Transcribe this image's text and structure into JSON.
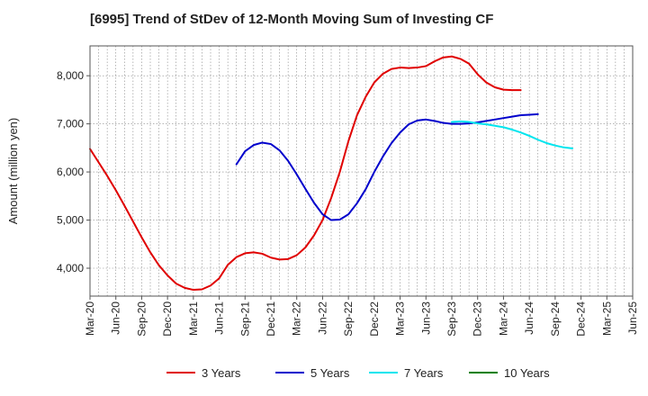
{
  "chart_data": {
    "type": "line",
    "title": "[6995]  Trend of StDev of 12-Month Moving Sum of Investing CF",
    "xlabel": "",
    "ylabel": "Amount (million yen)",
    "ylim": [
      3420,
      8620
    ],
    "yticks": [
      4000,
      5000,
      6000,
      7000,
      8000
    ],
    "ytick_labels": [
      "4,000",
      "5,000",
      "6,000",
      "7,000",
      "8,000"
    ],
    "x_start": "2020-03",
    "x_end": "2025-06",
    "xtick_labels": [
      "Mar-20",
      "Jun-20",
      "Sep-20",
      "Dec-20",
      "Mar-21",
      "Jun-21",
      "Sep-21",
      "Dec-21",
      "Mar-22",
      "Jun-22",
      "Sep-22",
      "Dec-22",
      "Mar-23",
      "Jun-23",
      "Sep-23",
      "Dec-23",
      "Mar-24",
      "Jun-24",
      "Sep-24",
      "Dec-24",
      "Mar-25",
      "Jun-25"
    ],
    "grid": true,
    "legend_position": "bottom",
    "series": [
      {
        "name": "3 Years",
        "color": "#e00000",
        "start": "2020-03",
        "values": [
          6480,
          6200,
          5920,
          5620,
          5300,
          4970,
          4640,
          4330,
          4060,
          3850,
          3680,
          3590,
          3550,
          3560,
          3640,
          3790,
          4070,
          4230,
          4310,
          4330,
          4300,
          4220,
          4180,
          4190,
          4270,
          4430,
          4680,
          5000,
          5460,
          6000,
          6640,
          7180,
          7560,
          7860,
          8040,
          8140,
          8170,
          8160,
          8170,
          8200,
          8300,
          8380,
          8400,
          8350,
          8250,
          8030,
          7860,
          7760,
          7710,
          7700,
          7700
        ]
      },
      {
        "name": "5 Years",
        "color": "#0000cc",
        "start": "2021-08",
        "values": [
          6160,
          6430,
          6560,
          6610,
          6580,
          6450,
          6230,
          5950,
          5650,
          5360,
          5120,
          5000,
          5010,
          5120,
          5350,
          5640,
          6000,
          6320,
          6600,
          6820,
          6990,
          7070,
          7090,
          7060,
          7020,
          7000,
          7000,
          7010,
          7030,
          7060,
          7090,
          7120,
          7150,
          7180,
          7190,
          7200
        ]
      },
      {
        "name": "7 Years",
        "color": "#00e5ee",
        "start": "2023-09",
        "values": [
          7040,
          7050,
          7040,
          7010,
          6990,
          6960,
          6930,
          6880,
          6820,
          6750,
          6670,
          6600,
          6550,
          6510,
          6490
        ]
      },
      {
        "name": "10 Years",
        "color": "#008000",
        "start": "2025-03",
        "values": []
      }
    ]
  }
}
